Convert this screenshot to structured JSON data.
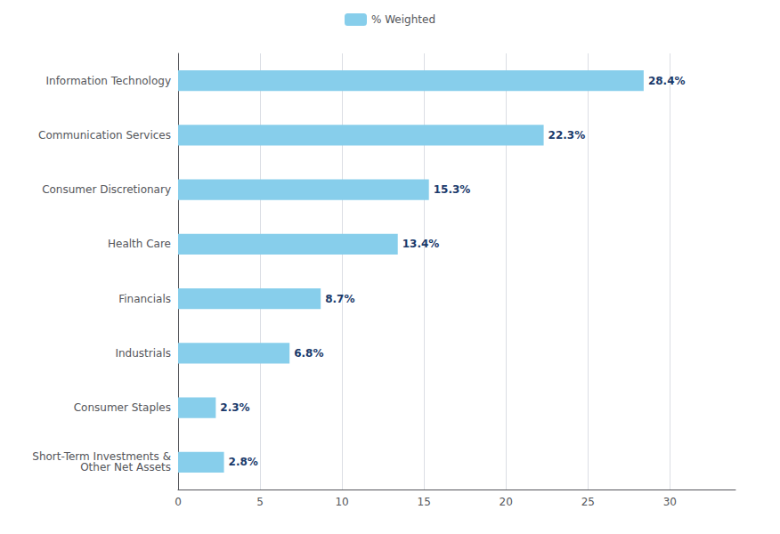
{
  "chart_data": {
    "type": "bar",
    "orientation": "horizontal",
    "categories": [
      "Short-Term Investments &\nOther Net Assets",
      "Consumer Staples",
      "Industrials",
      "Financials",
      "Health Care",
      "Consumer Discretionary",
      "Communication Services",
      "Information Technology"
    ],
    "series": [
      {
        "name": "% Weighted",
        "color": "#87CEEB",
        "values": [
          2.8,
          2.3,
          6.8,
          8.7,
          13.4,
          15.3,
          22.3,
          28.4
        ],
        "value_labels": [
          "2.8%",
          "2.3%",
          "6.8%",
          "8.7%",
          "13.4%",
          "15.3%",
          "22.3%",
          "28.4%"
        ]
      }
    ],
    "xlim": [
      0,
      34
    ],
    "xticks": [
      0,
      5,
      10,
      15,
      20,
      25,
      30
    ],
    "grid": true,
    "legend": "top",
    "data_labels": true
  }
}
